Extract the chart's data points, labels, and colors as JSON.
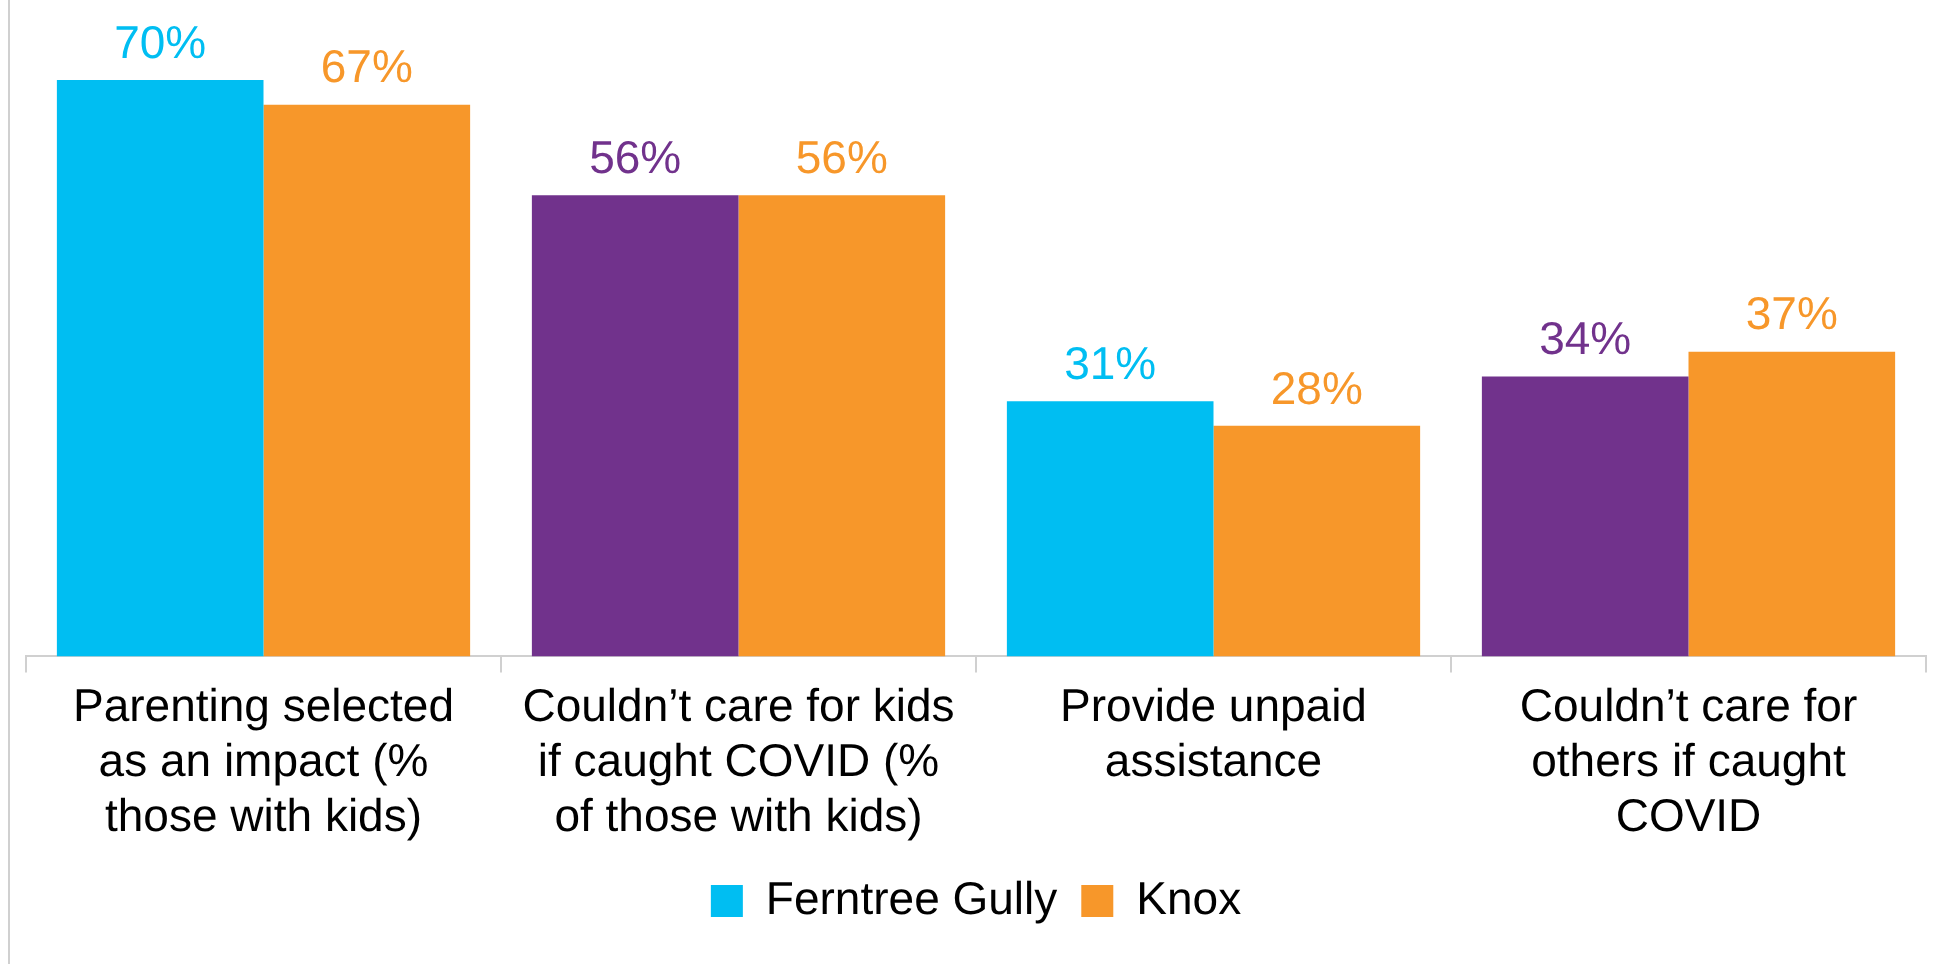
{
  "chart_data": {
    "type": "bar",
    "categories": [
      "Parenting selected as an impact (% those with kids)",
      "Couldn’t care for kids if caught COVID (% of those with kids)",
      "Provide unpaid assistance",
      "Couldn’t care for others if caught COVID"
    ],
    "series": [
      {
        "name": "Ferntree Gully",
        "color": "#00bef2",
        "colors": [
          "#00bef2",
          "#71328c",
          "#00bef2",
          "#71328c"
        ],
        "values": [
          70,
          56,
          31,
          34
        ],
        "value_labels": [
          "70%",
          "56%",
          "31%",
          "34%"
        ]
      },
      {
        "name": "Knox",
        "color": "#f7972a",
        "values": [
          67,
          56,
          28,
          37
        ],
        "value_labels": [
          "67%",
          "56%",
          "28%",
          "37%"
        ]
      }
    ],
    "legend": "bottom"
  }
}
